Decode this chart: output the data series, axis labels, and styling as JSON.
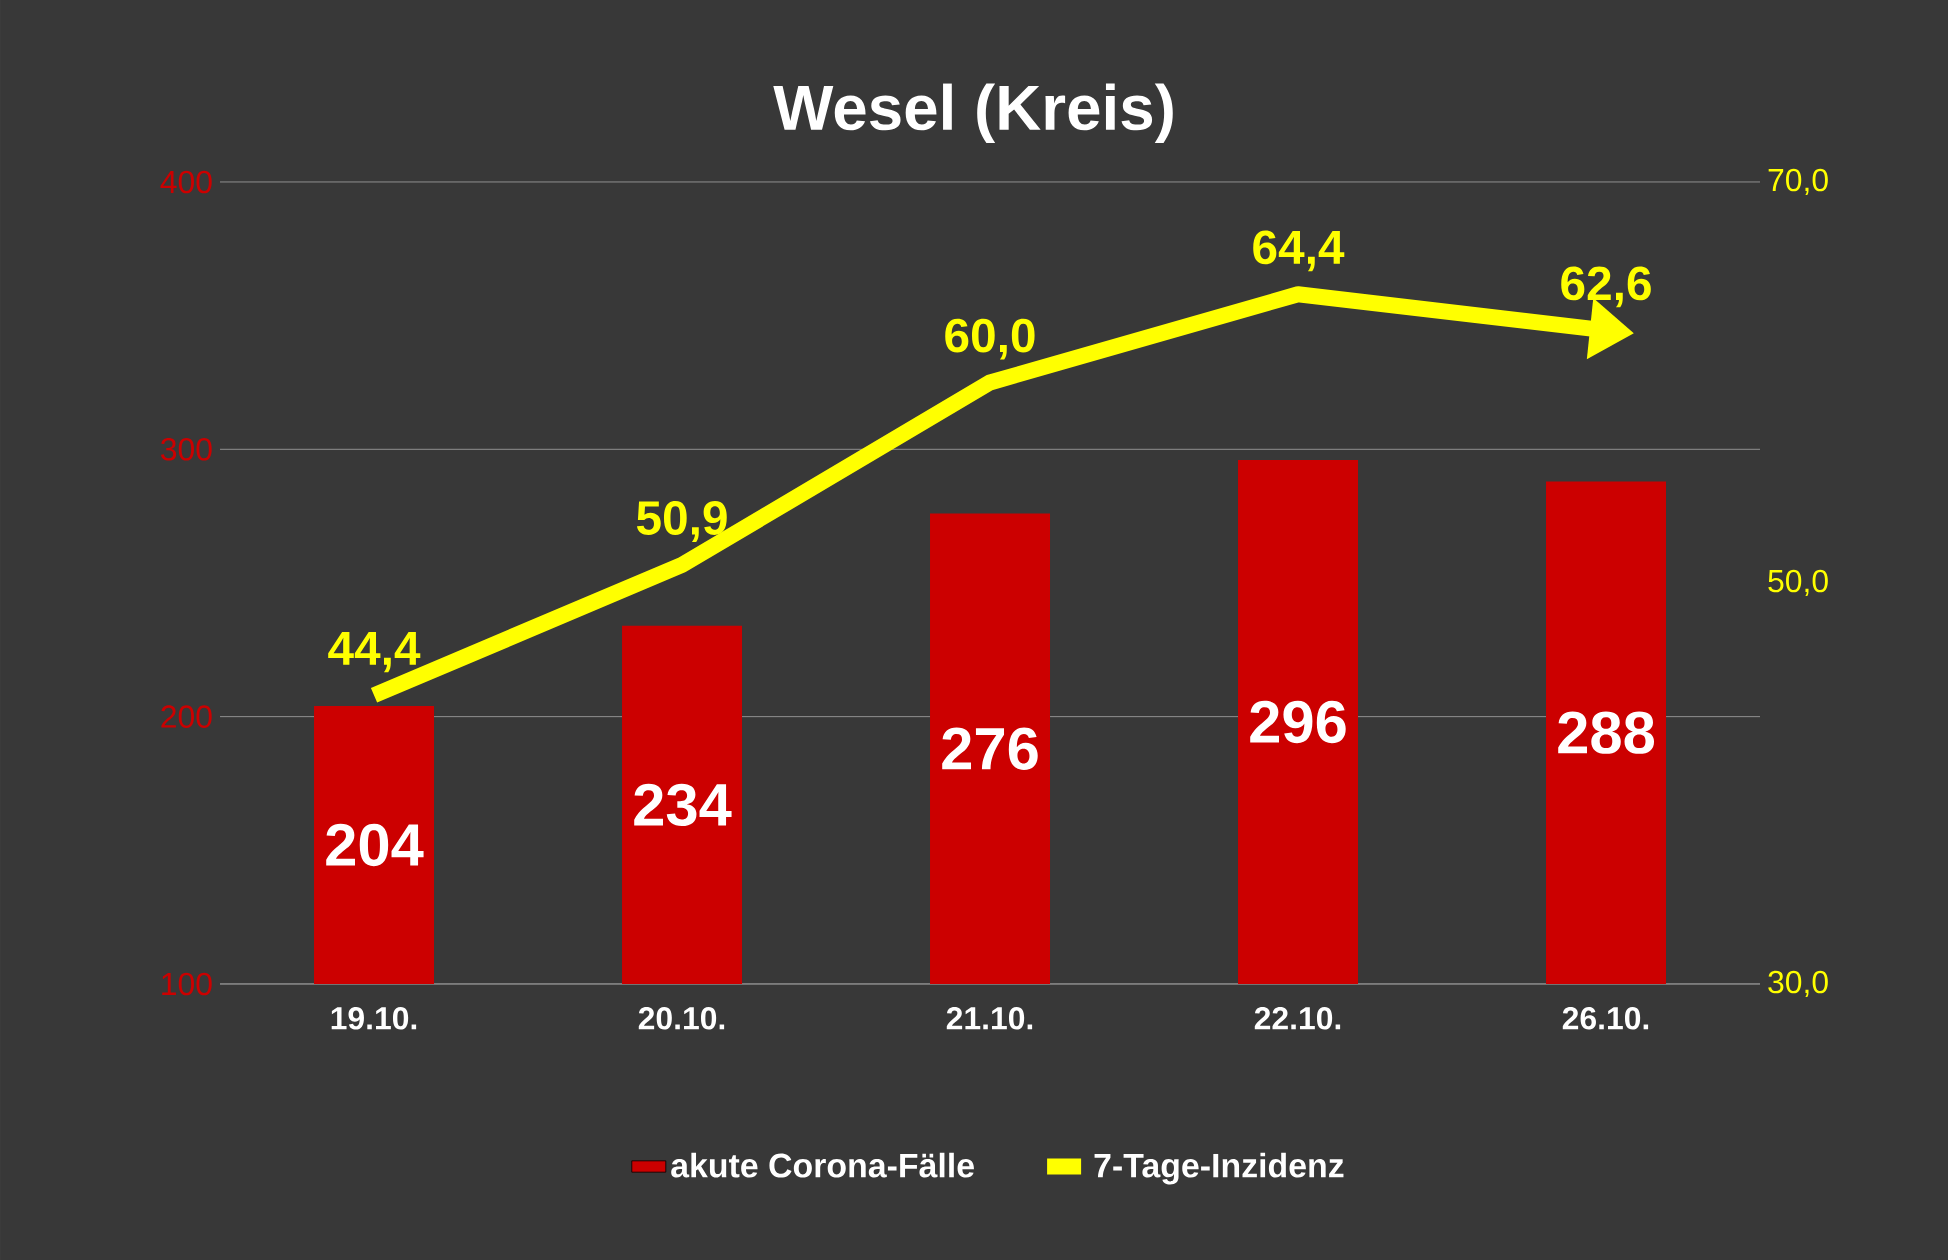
{
  "chart_data": {
    "type": "bar",
    "title": "Wesel (Kreis)",
    "categories": [
      "19.10.",
      "20.10.",
      "21.10.",
      "22.10.",
      "26.10."
    ],
    "series": [
      {
        "name": "akute Corona-Fälle",
        "color": "#cc0000",
        "values": [
          204,
          234,
          276,
          296,
          288
        ],
        "value_labels": [
          "204",
          "234",
          "276",
          "296",
          "288"
        ]
      },
      {
        "name": "7-Tage-Inzidenz",
        "type": "line",
        "axis": "y2",
        "color": "#ffff00",
        "values": [
          44.4,
          50.9,
          60.0,
          64.4,
          62.6
        ],
        "value_labels": [
          "44,4",
          "50,9",
          "60,0",
          "64,4",
          "62,6"
        ]
      }
    ],
    "ylim": [
      100,
      400
    ],
    "yticks": [
      100,
      200,
      300,
      400
    ],
    "y2lim": [
      30,
      70
    ],
    "y2ticks": [
      {
        "value": 30,
        "label": "30,0"
      },
      {
        "value": 50,
        "label": "50,0"
      },
      {
        "value": 70,
        "label": "70,0"
      }
    ],
    "grid": "y",
    "legend": "bottom"
  }
}
